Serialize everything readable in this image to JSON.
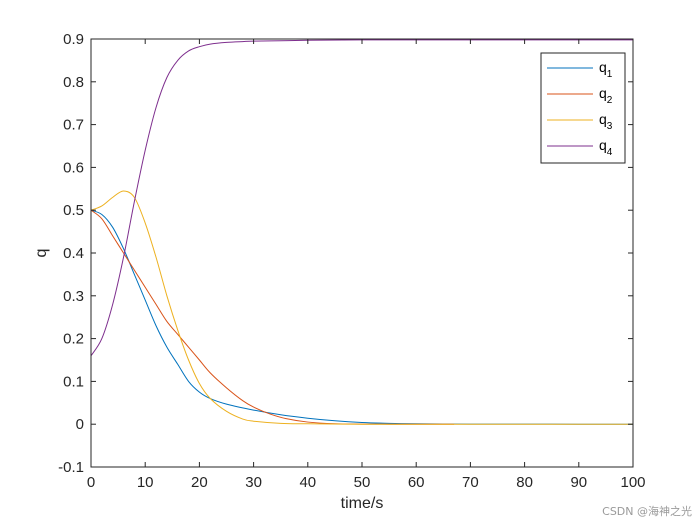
{
  "chart_data": {
    "type": "line",
    "title": "",
    "xlabel": "time/s",
    "ylabel": "q",
    "xlim": [
      0,
      100
    ],
    "ylim": [
      -0.1,
      0.9
    ],
    "xticks": [
      0,
      10,
      20,
      30,
      40,
      50,
      60,
      70,
      80,
      90,
      100
    ],
    "yticks": [
      -0.1,
      0,
      0.1,
      0.2,
      0.3,
      0.4,
      0.5,
      0.6,
      0.7,
      0.8,
      0.9
    ],
    "grid": false,
    "legend_position": "top-right",
    "series": [
      {
        "name": "q",
        "subscript": "1",
        "color": "#0072BD",
        "x": [
          0,
          2,
          4,
          6,
          8,
          10,
          12,
          14,
          16,
          18,
          20,
          22,
          25,
          30,
          35,
          40,
          45,
          50,
          55,
          60,
          65,
          70,
          80,
          90,
          100
        ],
        "y": [
          0.5,
          0.49,
          0.46,
          0.41,
          0.35,
          0.29,
          0.23,
          0.18,
          0.14,
          0.1,
          0.075,
          0.06,
          0.047,
          0.033,
          0.022,
          0.014,
          0.008,
          0.004,
          0.002,
          0.001,
          0.0005,
          0.0003,
          0.0001,
          0,
          0
        ]
      },
      {
        "name": "q",
        "subscript": "2",
        "color": "#D95319",
        "x": [
          0,
          2,
          4,
          6,
          8,
          10,
          12,
          14,
          16,
          18,
          20,
          22,
          25,
          28,
          30,
          33,
          36,
          40,
          45,
          50,
          55,
          60,
          67
        ],
        "y": [
          0.5,
          0.48,
          0.44,
          0.4,
          0.36,
          0.32,
          0.28,
          0.24,
          0.21,
          0.18,
          0.15,
          0.12,
          0.085,
          0.055,
          0.04,
          0.024,
          0.013,
          0.005,
          0.001,
          0.0003,
          0,
          0,
          0
        ]
      },
      {
        "name": "q",
        "subscript": "3",
        "color": "#EDB120",
        "x": [
          0,
          2,
          4,
          6,
          8,
          10,
          12,
          14,
          16,
          18,
          20,
          22,
          25,
          28,
          30,
          35,
          40,
          50,
          60,
          70,
          80,
          90,
          100
        ],
        "y": [
          0.5,
          0.51,
          0.53,
          0.545,
          0.53,
          0.47,
          0.39,
          0.3,
          0.22,
          0.15,
          0.095,
          0.06,
          0.03,
          0.012,
          0.007,
          0.002,
          0.001,
          0,
          0,
          0,
          0,
          0,
          0
        ]
      },
      {
        "name": "q",
        "subscript": "4",
        "color": "#7E2F8E",
        "x": [
          0,
          2,
          4,
          6,
          8,
          10,
          12,
          14,
          16,
          18,
          20,
          22,
          25,
          28,
          30,
          35,
          40,
          50,
          60,
          70,
          80,
          90,
          100
        ],
        "y": [
          0.16,
          0.2,
          0.28,
          0.39,
          0.52,
          0.64,
          0.74,
          0.81,
          0.85,
          0.872,
          0.882,
          0.888,
          0.892,
          0.894,
          0.895,
          0.896,
          0.897,
          0.898,
          0.898,
          0.898,
          0.898,
          0.898,
          0.898
        ]
      }
    ]
  },
  "watermark": "CSDN @海神之光"
}
